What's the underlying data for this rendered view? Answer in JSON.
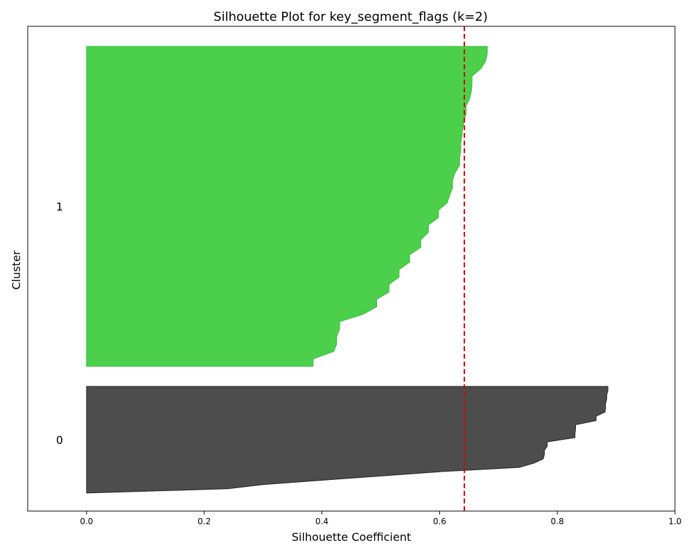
{
  "chart_data": {
    "type": "area",
    "title": "Silhouette Plot for key_segment_flags (k=2)",
    "xlabel": "Silhouette Coefficient",
    "ylabel": "Cluster",
    "xlim": [
      -0.1,
      1.0
    ],
    "xticks": [
      0.0,
      0.2,
      0.4,
      0.6,
      0.8,
      1.0
    ],
    "xtick_labels": [
      "0.0",
      "0.2",
      "0.4",
      "0.6",
      "0.8",
      "1.0"
    ],
    "grid": false,
    "average_silhouette": 0.642,
    "average_line_color": "#dd0000",
    "clusters": [
      {
        "label": "0",
        "color": "#4d4d4d",
        "edge_color": "#222222",
        "sorted_values_desc": [
          0.886,
          0.886,
          0.884,
          0.884,
          0.882,
          0.882,
          0.881,
          0.866,
          0.866,
          0.831,
          0.831,
          0.83,
          0.83,
          0.783,
          0.783,
          0.778,
          0.778,
          0.776,
          0.76,
          0.735,
          0.6,
          0.5,
          0.4,
          0.3,
          0.24,
          0.0
        ]
      },
      {
        "label": "1",
        "color": "#4cd04c",
        "edge_color": "#33bb33",
        "sorted_values_desc": [
          0.681,
          0.681,
          0.678,
          0.67,
          0.655,
          0.655,
          0.654,
          0.651,
          0.645,
          0.645,
          0.642,
          0.639,
          0.638,
          0.636,
          0.636,
          0.634,
          0.634,
          0.626,
          0.622,
          0.622,
          0.617,
          0.613,
          0.598,
          0.598,
          0.581,
          0.581,
          0.568,
          0.568,
          0.549,
          0.549,
          0.531,
          0.531,
          0.514,
          0.514,
          0.493,
          0.493,
          0.47,
          0.43,
          0.43,
          0.425,
          0.425,
          0.42,
          0.385,
          0.385
        ]
      }
    ]
  }
}
